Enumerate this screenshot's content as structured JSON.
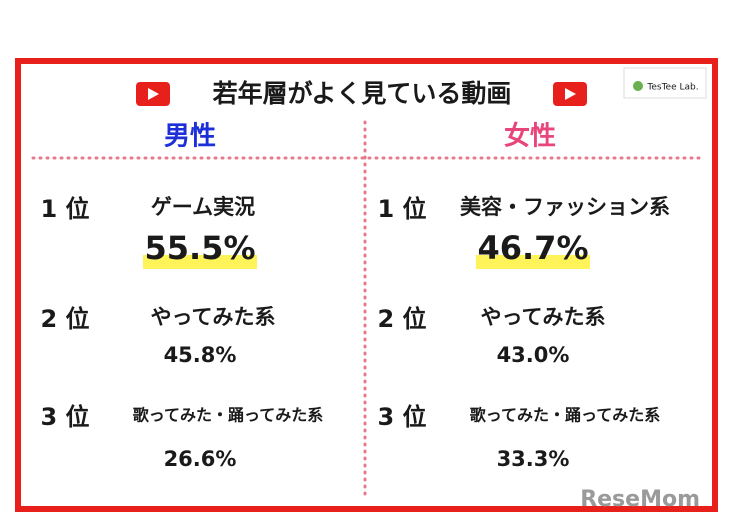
{
  "title": "若年層がよく見ている動画",
  "logo": "TesTee Lab.",
  "watermark": "ReseMom",
  "columns": [
    {
      "heading": "男性",
      "color": "#1d2fd6",
      "rankings": [
        {
          "rank": "1 位",
          "category": "ゲーム実況",
          "value": "55.5%"
        },
        {
          "rank": "2 位",
          "category": "やってみた系",
          "value": "45.8%"
        },
        {
          "rank": "3 位",
          "category": "歌ってみた・踊ってみた系",
          "value": "26.6%"
        }
      ]
    },
    {
      "heading": "女性",
      "color": "#e8457a",
      "rankings": [
        {
          "rank": "1 位",
          "category": "美容・ファッション系",
          "value": "46.7%"
        },
        {
          "rank": "2 位",
          "category": "やってみた系",
          "value": "43.0%"
        },
        {
          "rank": "3 位",
          "category": "歌ってみた・踊ってみた系",
          "value": "33.3%"
        }
      ]
    }
  ]
}
